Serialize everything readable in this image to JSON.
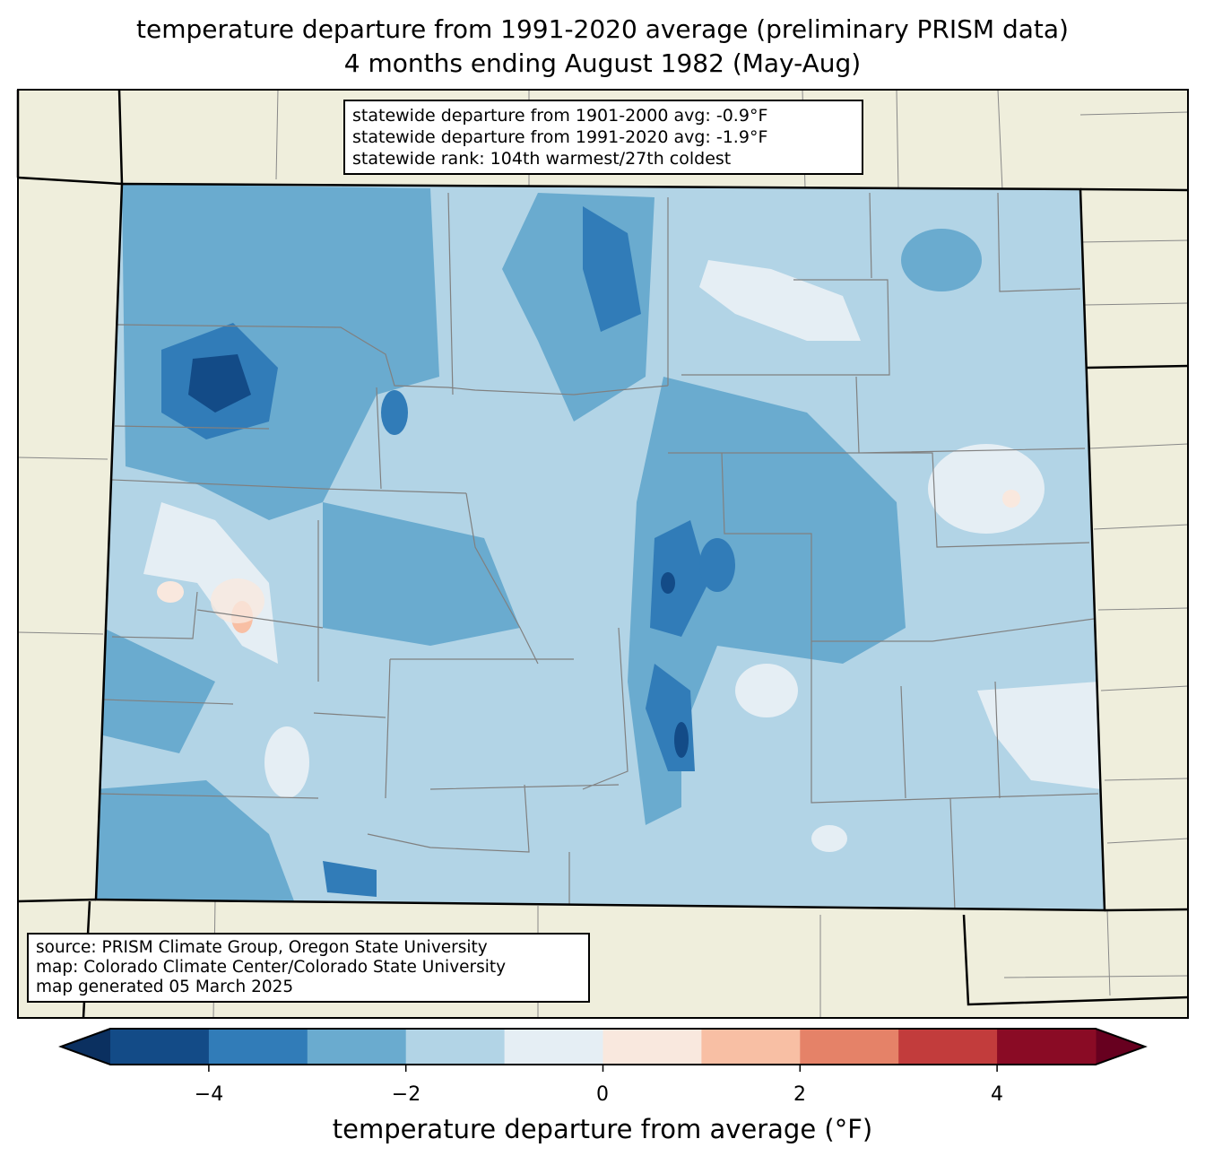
{
  "title": {
    "line1": "temperature departure from 1991-2020 average (preliminary PRISM data)",
    "line2": "4 months ending August 1982 (May-Aug)"
  },
  "stats_box": {
    "line1": "statewide departure from 1901-2000 avg: -0.9°F",
    "line2": "statewide departure from 1991-2020 avg: -1.9°F",
    "line3": "statewide rank: 104th warmest/27th coldest"
  },
  "source_box": {
    "line1": "source: PRISM Climate Group, Oregon State University",
    "line2": "map: Colorado Climate Center/Colorado State University",
    "line3": "map generated 05 March 2025"
  },
  "colorbar": {
    "label": "temperature departure from average (°F)",
    "bounds": [
      -5,
      -4,
      -3,
      -2,
      -1,
      0,
      1,
      2,
      3,
      4,
      5
    ],
    "colors": [
      "#134b87",
      "#317cb8",
      "#6aabcf",
      "#b2d4e6",
      "#e5eef4",
      "#f9e8de",
      "#f8bfa4",
      "#e58268",
      "#c23c3c",
      "#8a0b25"
    ],
    "under_color": "#0b3060",
    "over_color": "#67001f",
    "ticks": [
      "−4",
      "−2",
      "0",
      "2",
      "4"
    ]
  },
  "colors": {
    "background_land": "#efeedc",
    "county_lines": "#808080"
  }
}
